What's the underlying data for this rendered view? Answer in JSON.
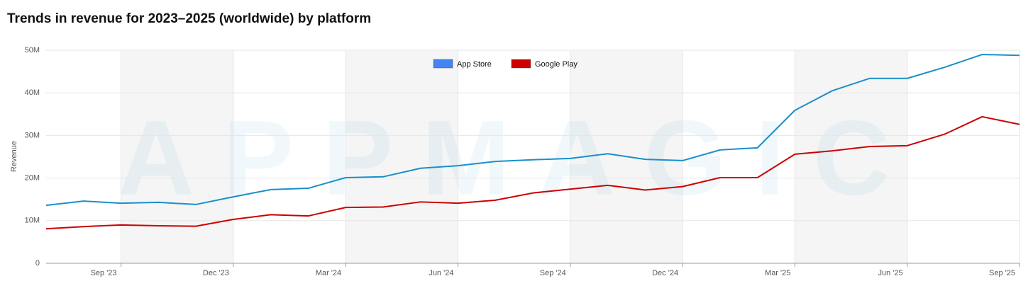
{
  "chart_data": {
    "type": "line",
    "title": "Trends in revenue for 2023–2025 (worldwide) by platform",
    "watermark": "APPMAGIC",
    "y_label": "Revenue",
    "categories": [
      null,
      null,
      "Sep '23",
      null,
      null,
      "Dec '23",
      null,
      null,
      "Mar '24",
      null,
      null,
      "Jun '24",
      null,
      null,
      "Sep '24",
      null,
      null,
      "Dec '24",
      null,
      null,
      "Mar '25",
      null,
      null,
      "Jun '25",
      null,
      null,
      "Sep '25"
    ],
    "series": [
      {
        "name": "App Store",
        "color": "#1a8fcc",
        "legend_color": "#4285f4",
        "values": [
          13600000,
          14600000,
          14100000,
          14300000,
          13800000,
          15600000,
          17300000,
          17600000,
          20100000,
          20300000,
          22300000,
          22900000,
          23900000,
          24300000,
          24600000,
          25700000,
          24400000,
          24100000,
          26600000,
          27100000,
          35900000,
          40500000,
          43400000,
          43400000,
          46000000,
          49000000,
          48800000
        ]
      },
      {
        "name": "Google Play",
        "color": "#cc0000",
        "legend_color": "#cc0000",
        "values": [
          8100000,
          8600000,
          9000000,
          8800000,
          8700000,
          10300000,
          11400000,
          11100000,
          13100000,
          13200000,
          14400000,
          14100000,
          14800000,
          16500000,
          17400000,
          18300000,
          17200000,
          18000000,
          20100000,
          20100000,
          25600000,
          26400000,
          27400000,
          27600000,
          30300000,
          34400000,
          32600000
        ]
      }
    ],
    "ylim": [
      0,
      50000000
    ],
    "yticks": [
      0,
      {
        "value": 10000000,
        "label": "10M"
      },
      {
        "value": 20000000,
        "label": "20M"
      },
      {
        "value": 30000000,
        "label": "30M"
      },
      {
        "value": 40000000,
        "label": "40M"
      },
      {
        "value": 50000000,
        "label": "50M"
      }
    ],
    "grid": true,
    "legend": "top"
  }
}
